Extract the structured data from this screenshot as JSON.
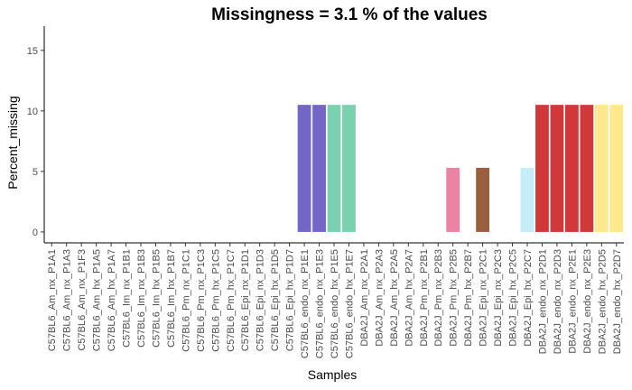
{
  "chart_data": {
    "type": "bar",
    "title": "Missingness =  3.1 % of the values",
    "xlabel": "Samples",
    "ylabel": "Percent_missing",
    "ylim": [
      -0.9,
      17
    ],
    "yticks": [
      0,
      5,
      10,
      15
    ],
    "grid": false,
    "legend": "none",
    "categories": [
      "C57BL6_Am_nx_P1A1",
      "C57BL6_Am_nx_P1A3",
      "C57BL6_Am_nx_P1F3",
      "C57BL6_Am_hx_P1A5",
      "C57BL6_Am_hx_P1A7",
      "C57BL6_Im_nx_P1B1",
      "C57BL6_Im_nx_P1B3",
      "C57BL6_Im_hx_P1B5",
      "C57BL6_Im_hx_P1B7",
      "C57BL6_Pm_nx_P1C1",
      "C57BL6_Pm_nx_P1C3",
      "C57BL6_Pm_hx_P1C5",
      "C57BL6_Pm_hx_P1C7",
      "C57BL6_Epi_nx_P1D1",
      "C57BL6_Epi_nx_P1D3",
      "C57BL6_Epi_hx_P1D5",
      "C57BL6_Epi_hx_P1D7",
      "C57BL6_endo_nx_P1E1",
      "C57BL6_endo_nx_P1E3",
      "C57BL6_endo_hx_P1E5",
      "C57BL6_endo_hx_P1E7",
      "DBA2J_Am_nx_P2A1",
      "DBA2J_Am_nx_P2A3",
      "DBA2J_Am_hx_P2A5",
      "DBA2J_Am_hx_P2A7",
      "DBA2J_Pm_nx_P2B1",
      "DBA2J_Pm_nx_P2B3",
      "DBA2J_Pm_hx_P2B5",
      "DBA2J_Pm_hx_P2B7",
      "DBA2J_Epi_nx_P2C1",
      "DBA2J_Epi_nx_P2C3",
      "DBA2J_Epi_hx_P2C5",
      "DBA2J_Epi_hx_P2C7",
      "DBA2J_endo_nx_P2D1",
      "DBA2J_endo_nx_P2D3",
      "DBA2J_endo_nx_P2E1",
      "DBA2J_endo_nx_P2E3",
      "DBA2J_endo_hx_P2D5",
      "DBA2J_endo_hx_P2D7"
    ],
    "values": [
      0,
      0,
      0,
      0,
      0,
      0,
      0,
      0,
      0,
      0,
      0,
      0,
      0,
      0,
      0,
      0,
      0,
      10.5,
      10.5,
      10.5,
      10.5,
      0,
      0,
      0,
      0,
      0,
      0,
      5.3,
      0,
      5.3,
      0,
      0,
      5.3,
      10.5,
      10.5,
      10.5,
      10.5,
      10.5,
      10.5
    ],
    "colors": [
      "#ffffff",
      "#ffffff",
      "#ffffff",
      "#ffffff",
      "#ffffff",
      "#ffffff",
      "#ffffff",
      "#ffffff",
      "#ffffff",
      "#ffffff",
      "#ffffff",
      "#ffffff",
      "#ffffff",
      "#ffffff",
      "#ffffff",
      "#ffffff",
      "#ffffff",
      "#7466c7",
      "#7466c7",
      "#7ad1ae",
      "#7ad1ae",
      "#ffffff",
      "#ffffff",
      "#ffffff",
      "#ffffff",
      "#ffffff",
      "#ffffff",
      "#ec82a4",
      "#ffffff",
      "#9b5f40",
      "#ffffff",
      "#ffffff",
      "#c5eef9",
      "#d1383a",
      "#d1383a",
      "#d1383a",
      "#d1383a",
      "#fee88e",
      "#fee88e"
    ]
  }
}
